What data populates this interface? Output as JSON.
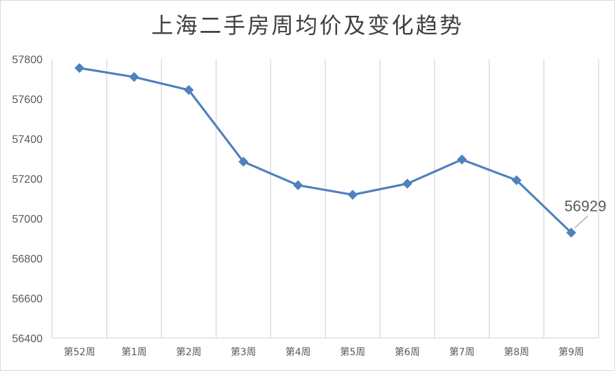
{
  "chart_data": {
    "type": "line",
    "title": "上海二手房周均价及变化趋势",
    "xlabel": "",
    "ylabel": "",
    "categories": [
      "第52周",
      "第1周",
      "第2周",
      "第3周",
      "第4周",
      "第5周",
      "第6周",
      "第7周",
      "第8周",
      "第9周"
    ],
    "series": [
      {
        "values": [
          57755,
          57710,
          57645,
          57285,
          57167,
          57119,
          57175,
          57296,
          57192,
          56929
        ],
        "color": "#4f81bd",
        "marker": "diamond"
      }
    ],
    "ylim": [
      56400,
      57800
    ],
    "yticks": [
      56400,
      56600,
      56800,
      57000,
      57200,
      57400,
      57600,
      57800
    ],
    "grid": "vertical",
    "legend": "none",
    "data_labels": [
      {
        "index": 9,
        "text": "56929"
      }
    ]
  }
}
